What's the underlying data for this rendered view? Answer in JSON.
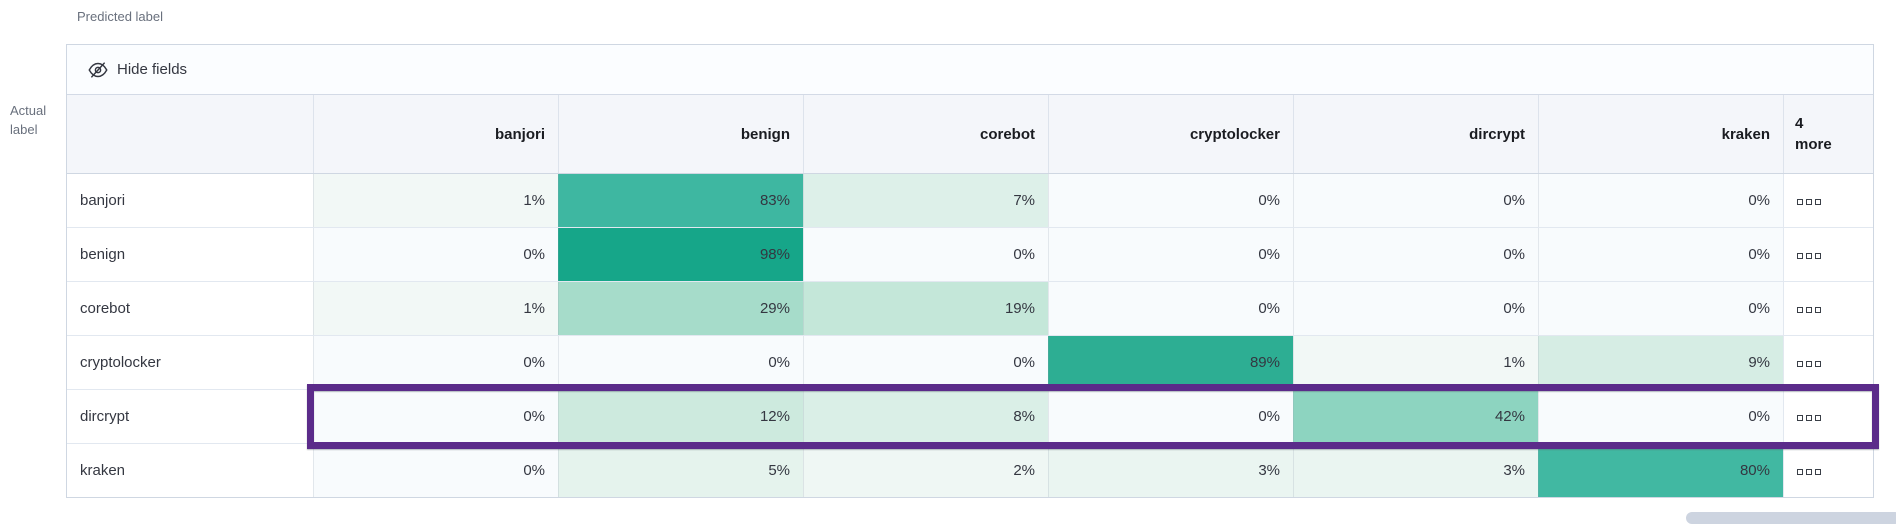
{
  "axes": {
    "predicted": "Predicted label",
    "actual": "Actual label"
  },
  "toolbar": {
    "hide_fields": "Hide fields",
    "icon": "eye-closed"
  },
  "matrix": {
    "columns": [
      "banjori",
      "benign",
      "corebot",
      "cryptolocker",
      "dircrypt",
      "kraken"
    ],
    "more_header": "4\nmore",
    "more_cell_icon": "boxes-horizontal",
    "rows": [
      {
        "label": "banjori",
        "values": [
          "1%",
          "83%",
          "7%",
          "0%",
          "0%",
          "0%"
        ],
        "colors": [
          "#f2f8f6",
          "#3eb7a1",
          "#ddf0e9",
          "#f8fbfd",
          "#f8fbfd",
          "#f8fbfd"
        ]
      },
      {
        "label": "benign",
        "values": [
          "0%",
          "98%",
          "0%",
          "0%",
          "0%",
          "0%"
        ],
        "colors": [
          "#f8fbfd",
          "#16a689",
          "#f8fbfd",
          "#f8fbfd",
          "#f8fbfd",
          "#f8fbfd"
        ]
      },
      {
        "label": "corebot",
        "values": [
          "1%",
          "29%",
          "19%",
          "0%",
          "0%",
          "0%"
        ],
        "colors": [
          "#f2f8f6",
          "#a6dcca",
          "#c4e7d9",
          "#f8fbfd",
          "#f8fbfd",
          "#f8fbfd"
        ]
      },
      {
        "label": "cryptolocker",
        "values": [
          "0%",
          "0%",
          "0%",
          "89%",
          "1%",
          "9%"
        ],
        "colors": [
          "#f8fbfd",
          "#f8fbfd",
          "#f8fbfd",
          "#2dae93",
          "#f2f8f6",
          "#d6ede4"
        ]
      },
      {
        "label": "dircrypt",
        "values": [
          "0%",
          "12%",
          "8%",
          "0%",
          "42%",
          "0%"
        ],
        "colors": [
          "#f8fbfd",
          "#cdeade",
          "#daefe7",
          "#f8fbfd",
          "#8dd4c0",
          "#f8fbfd"
        ]
      },
      {
        "label": "kraken",
        "values": [
          "0%",
          "5%",
          "2%",
          "3%",
          "3%",
          "80%"
        ],
        "colors": [
          "#f8fbfd",
          "#e5f3ed",
          "#eff7f4",
          "#eaf5f1",
          "#eaf5f1",
          "#41b8a2"
        ]
      }
    ],
    "highlighted_row": "dircrypt",
    "highlight_color": "#5b2b8a"
  }
}
